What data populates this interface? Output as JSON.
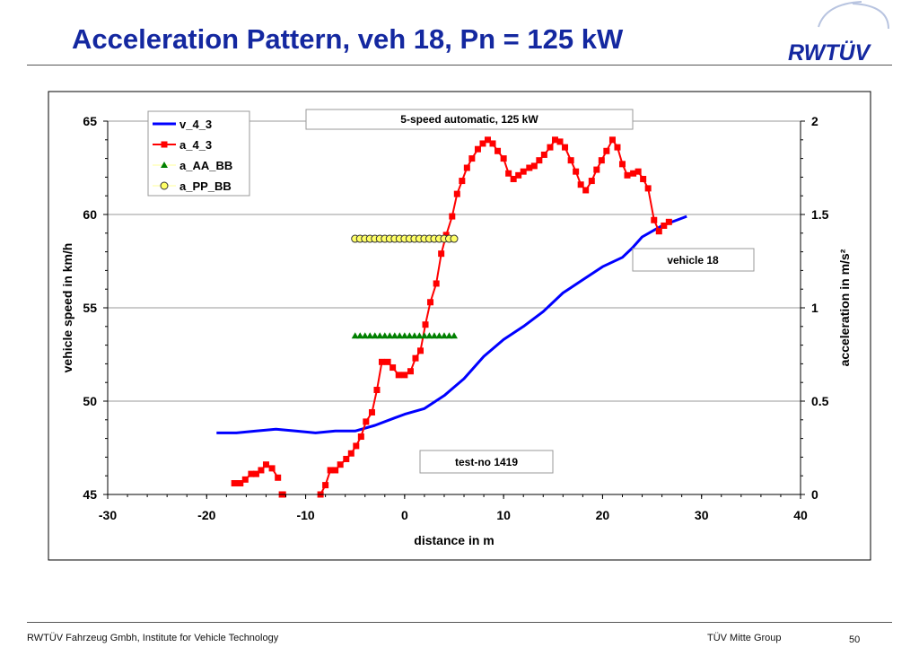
{
  "slide": {
    "title": "Acceleration Pattern, veh 18, Pn = 125 kW",
    "logo_text": "RWTÜV",
    "footer_left": "RWTÜV Fahrzeug Gmbh, Institute for Vehicle Technology",
    "footer_center": "TÜV Mitte Group",
    "page_number": "50"
  },
  "colors": {
    "title": "#1428a0",
    "v_series": "#0000ff",
    "a_series": "#ff0000",
    "aa_series": "#008000",
    "pp_series": "#ffff66"
  },
  "chart_data": {
    "type": "line",
    "xlabel": "distance in m",
    "ylabel_left": "vehicle speed in km/h",
    "ylabel_right": "acceleration in m/s²",
    "xlim": [
      -30,
      40
    ],
    "ylim_left": [
      45,
      65
    ],
    "ylim_right": [
      0,
      2
    ],
    "x_ticks": [
      "-30",
      "-20",
      "-10",
      "0",
      "10",
      "20",
      "30",
      "40"
    ],
    "y_left_ticks": [
      "45",
      "50",
      "55",
      "60",
      "65"
    ],
    "y_right_ticks": [
      "0",
      "0.5",
      "1",
      "1.5",
      "2"
    ],
    "grid": "horizontal",
    "legend_position": "top-left",
    "annotations": {
      "header": "5-speed automatic, 125 kW",
      "vehicle": "vehicle 18",
      "test": "test-no 1419"
    },
    "series": [
      {
        "name": "v_4_3",
        "axis": "left",
        "style": "line",
        "x": [
          -19,
          -17,
          -15,
          -13,
          -11,
          -9,
          -7,
          -5,
          -3,
          -1,
          0,
          2,
          4,
          6,
          8,
          10,
          12,
          14,
          16,
          18,
          20,
          22,
          23,
          24,
          26,
          28.5
        ],
        "y": [
          48.3,
          48.3,
          48.4,
          48.5,
          48.4,
          48.3,
          48.4,
          48.4,
          48.7,
          49.1,
          49.3,
          49.6,
          50.3,
          51.2,
          52.4,
          53.3,
          54.0,
          54.8,
          55.8,
          56.5,
          57.2,
          57.7,
          58.2,
          58.8,
          59.4,
          59.9
        ]
      },
      {
        "name": "a_4_3",
        "axis": "right",
        "style": "line-marker-square",
        "segments": [
          {
            "x": [
              -17.2,
              -16.6,
              -16.1,
              -15.5,
              -15.0,
              -14.5,
              -14.0,
              -13.4,
              -12.8
            ],
            "y": [
              0.06,
              0.06,
              0.08,
              0.11,
              0.11,
              0.13,
              0.16,
              0.14,
              0.09
            ]
          },
          {
            "x": [
              -12.4,
              -12.3
            ],
            "y": [
              0.0,
              0.0
            ]
          },
          {
            "x": [
              -8.5,
              -8.0,
              -7.5,
              -7.0,
              -6.5,
              -5.9,
              -5.4,
              -4.9,
              -4.4,
              -3.9,
              -3.3,
              -2.8,
              -2.3,
              -1.7,
              -1.2,
              -0.6,
              0.0,
              0.6,
              1.1,
              1.6,
              2.1,
              2.6,
              3.2,
              3.7,
              4.2,
              4.8,
              5.3,
              5.8,
              6.3,
              6.8,
              7.4,
              7.9,
              8.4,
              8.9,
              9.4,
              10.0,
              10.5,
              11.0,
              11.5,
              12.0,
              12.6,
              13.1,
              13.6,
              14.1,
              14.7,
              15.2,
              15.7,
              16.2,
              16.8,
              17.3,
              17.8,
              18.3,
              18.9,
              19.4,
              19.9,
              20.4,
              21.0,
              21.5,
              22.0,
              22.5,
              23.1,
              23.6,
              24.1,
              24.6,
              25.2,
              25.7,
              26.2,
              26.7
            ],
            "y": [
              0.0,
              0.05,
              0.13,
              0.13,
              0.16,
              0.19,
              0.22,
              0.26,
              0.31,
              0.39,
              0.44,
              0.56,
              0.71,
              0.71,
              0.68,
              0.64,
              0.64,
              0.66,
              0.73,
              0.77,
              0.91,
              1.03,
              1.13,
              1.29,
              1.39,
              1.49,
              1.61,
              1.68,
              1.75,
              1.8,
              1.85,
              1.88,
              1.9,
              1.88,
              1.84,
              1.8,
              1.72,
              1.69,
              1.71,
              1.73,
              1.75,
              1.76,
              1.79,
              1.82,
              1.86,
              1.9,
              1.89,
              1.86,
              1.79,
              1.73,
              1.66,
              1.63,
              1.68,
              1.74,
              1.79,
              1.84,
              1.9,
              1.86,
              1.77,
              1.71,
              1.72,
              1.73,
              1.69,
              1.64,
              1.47,
              1.41,
              1.44,
              1.46
            ]
          }
        ]
      },
      {
        "name": "a_AA_BB",
        "axis": "right",
        "style": "marker-triangle",
        "x": [
          -5.0,
          -4.5,
          -4.0,
          -3.5,
          -3.0,
          -2.5,
          -2.0,
          -1.5,
          -1.0,
          -0.5,
          0.0,
          0.5,
          1.0,
          1.5,
          2.0,
          2.5,
          3.0,
          3.5,
          4.0,
          4.5,
          5.0
        ],
        "y": [
          0.85,
          0.85,
          0.85,
          0.85,
          0.85,
          0.85,
          0.85,
          0.85,
          0.85,
          0.85,
          0.85,
          0.85,
          0.85,
          0.85,
          0.85,
          0.85,
          0.85,
          0.85,
          0.85,
          0.85,
          0.85
        ]
      },
      {
        "name": "a_PP_BB",
        "axis": "right",
        "style": "marker-circle",
        "x": [
          -5.0,
          -4.5,
          -4.0,
          -3.5,
          -3.0,
          -2.5,
          -2.0,
          -1.5,
          -1.0,
          -0.5,
          0.0,
          0.5,
          1.0,
          1.5,
          2.0,
          2.5,
          3.0,
          3.5,
          4.0,
          4.5,
          5.0
        ],
        "y": [
          1.37,
          1.37,
          1.37,
          1.37,
          1.37,
          1.37,
          1.37,
          1.37,
          1.37,
          1.37,
          1.37,
          1.37,
          1.37,
          1.37,
          1.37,
          1.37,
          1.37,
          1.37,
          1.37,
          1.37,
          1.37
        ]
      }
    ]
  }
}
